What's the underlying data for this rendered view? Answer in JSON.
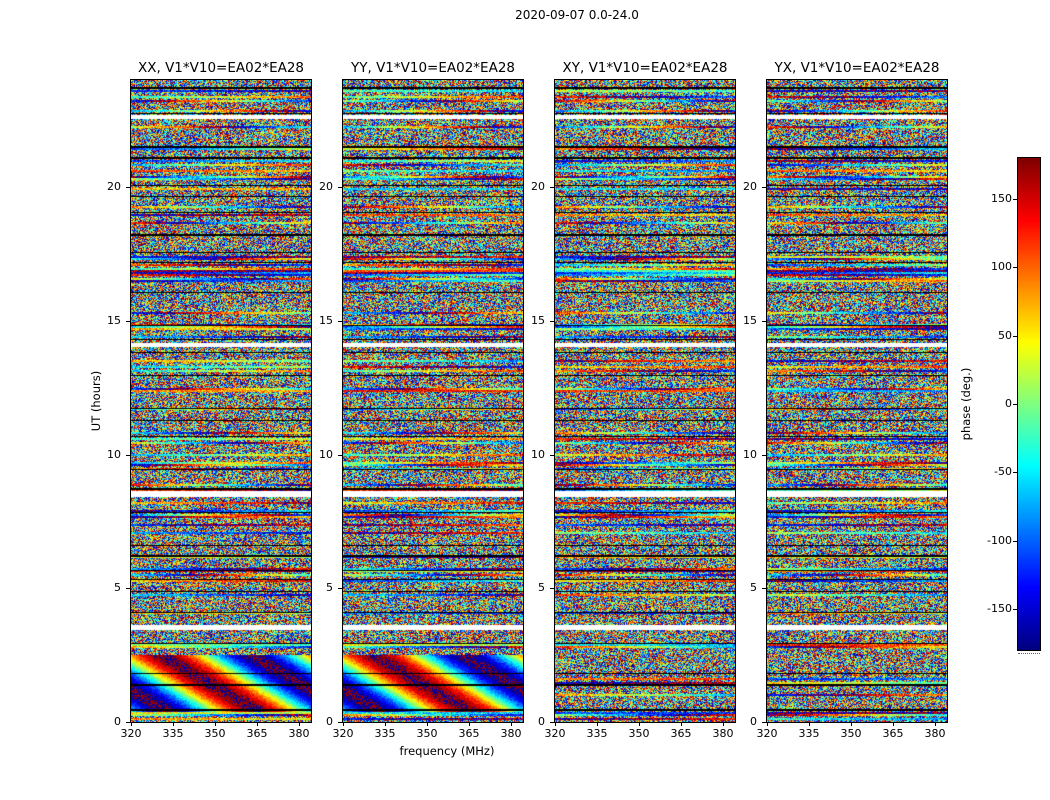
{
  "figure": {
    "title": "2020-09-07 0.0-24.0",
    "xlabel": "frequency (MHz)",
    "ylabel": "UT (hours)"
  },
  "colorbar": {
    "label": "phase (deg.)",
    "tick_labels": [
      "150",
      "100",
      "50",
      "0",
      "-50",
      "-100",
      "-150"
    ],
    "colormap": "jet"
  },
  "chart_data": {
    "type": "heatmap",
    "title": "2020-09-07 0.0-24.0",
    "xlabel": "frequency (MHz)",
    "ylabel": "UT (hours)",
    "x_range_mhz": [
      320,
      384.3
    ],
    "x_ticks": [
      320,
      335,
      350,
      365,
      380
    ],
    "x_tick_labels": [
      "320",
      "335",
      "350",
      "365",
      "380"
    ],
    "y_range_hours": [
      0,
      24
    ],
    "y_ticks": [
      0,
      5,
      10,
      15,
      20
    ],
    "y_tick_labels": [
      "0",
      "5",
      "10",
      "15",
      "20"
    ],
    "colorbar_label": "phase (deg.)",
    "colorbar_ticks": [
      150,
      100,
      50,
      0,
      -50,
      -100,
      -150
    ],
    "colorbar_range_deg": [
      -180,
      180
    ],
    "colormap": "jet",
    "panels": [
      {
        "title": "XX, V1*V10=EA02*EA28",
        "polarization": "XX",
        "baseline": "V1*V10=EA02*EA28"
      },
      {
        "title": "YY, V1*V10=EA02*EA28",
        "polarization": "YY",
        "baseline": "V1*V10=EA02*EA28"
      },
      {
        "title": "XY, V1*V10=EA02*EA28",
        "polarization": "XY",
        "baseline": "V1*V10=EA02*EA28"
      },
      {
        "title": "YX, V1*V10=EA02*EA28",
        "polarization": "YX",
        "baseline": "V1*V10=EA02*EA28"
      }
    ],
    "values_description": "Dense pseudo-random interferometric visibility phase (-180..180 deg, jet colormap) vs frequency (x) and UT time (y) for four polarization products of baseline V1*V10=EA02*EA28. Thin dark horizontal scan-boundary lines and white flagged-time bands occur at the same UT in all four panels. Smooth coherent rainbow phase fringes appear near UT 0.5-2.3 in the XX and YY panels.",
    "flagged_white_bands_ut_hours": [
      3.55,
      8.55,
      14.1,
      22.6
    ]
  }
}
